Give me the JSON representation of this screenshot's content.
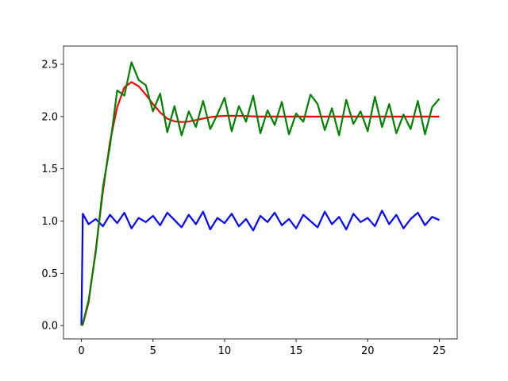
{
  "chart_data": {
    "type": "line",
    "x": [
      0,
      0.1,
      0.5,
      1,
      1.5,
      2,
      2.5,
      3,
      3.5,
      4,
      4.5,
      5,
      5.5,
      6,
      6.5,
      7,
      7.5,
      8,
      8.5,
      9,
      9.5,
      10,
      10.5,
      11,
      11.5,
      12,
      12.5,
      13,
      13.5,
      14,
      14.5,
      15,
      15.5,
      16,
      16.5,
      17,
      17.5,
      18,
      18.5,
      19,
      19.5,
      20,
      20.5,
      21,
      21.5,
      22,
      22.5,
      23,
      23.5,
      24,
      24.5,
      25
    ],
    "series": [
      {
        "color": "#0000ff",
        "values": [
          0,
          1.07,
          0.97,
          1.02,
          0.95,
          1.06,
          0.98,
          1.08,
          0.93,
          1.03,
          0.99,
          1.05,
          0.96,
          1.08,
          1.01,
          0.94,
          1.06,
          0.97,
          1.09,
          0.92,
          1.03,
          0.98,
          1.07,
          0.95,
          1.02,
          0.91,
          1.05,
          0.99,
          1.08,
          0.96,
          1.02,
          0.93,
          1.06,
          1.0,
          0.94,
          1.09,
          0.97,
          1.04,
          0.92,
          1.07,
          0.99,
          1.03,
          0.95,
          1.1,
          0.97,
          1.06,
          0.93,
          1.02,
          1.08,
          0.96,
          1.04,
          1.01
        ]
      },
      {
        "color": "#ff0000",
        "values": [
          0,
          0.01,
          0.22,
          0.72,
          1.28,
          1.76,
          2.09,
          2.28,
          2.33,
          2.29,
          2.21,
          2.12,
          2.04,
          1.98,
          1.955,
          1.947,
          1.953,
          1.966,
          1.981,
          1.994,
          2.003,
          2.007,
          2.008,
          2.007,
          2.005,
          2.002,
          2,
          2,
          2,
          2,
          2,
          2,
          2,
          2,
          2,
          2,
          2,
          2,
          2,
          2,
          2,
          2,
          2,
          2,
          2,
          2,
          2,
          2,
          2,
          2,
          2,
          2
        ]
      },
      {
        "color": "#008000",
        "values": [
          0,
          0.02,
          0.24,
          0.7,
          1.32,
          1.72,
          2.25,
          2.2,
          2.52,
          2.35,
          2.3,
          2.05,
          2.22,
          1.85,
          2.1,
          1.82,
          2.05,
          1.9,
          2.15,
          1.88,
          2.02,
          2.18,
          1.86,
          2.1,
          1.95,
          2.2,
          1.84,
          2.06,
          1.92,
          2.14,
          1.83,
          2.03,
          1.95,
          2.21,
          2.12,
          1.87,
          2.08,
          1.82,
          2.16,
          1.93,
          2.05,
          1.86,
          2.19,
          1.9,
          2.12,
          1.84,
          2.02,
          1.88,
          2.15,
          1.83,
          2.09,
          2.17
        ]
      }
    ],
    "xlim": [
      -1.25,
      26.25
    ],
    "xticks": [
      0,
      5,
      10,
      15,
      20,
      25
    ],
    "ylim": [
      -0.128,
      2.675
    ],
    "yticks": [
      {
        "value": 0,
        "label": "0.0"
      },
      {
        "value": 0.5,
        "label": "0.5"
      },
      {
        "value": 1,
        "label": "1.0"
      },
      {
        "value": 1.5,
        "label": "1.5"
      },
      {
        "value": 2,
        "label": "2.0"
      },
      {
        "value": 2.5,
        "label": "2.5"
      }
    ],
    "grid": false
  }
}
